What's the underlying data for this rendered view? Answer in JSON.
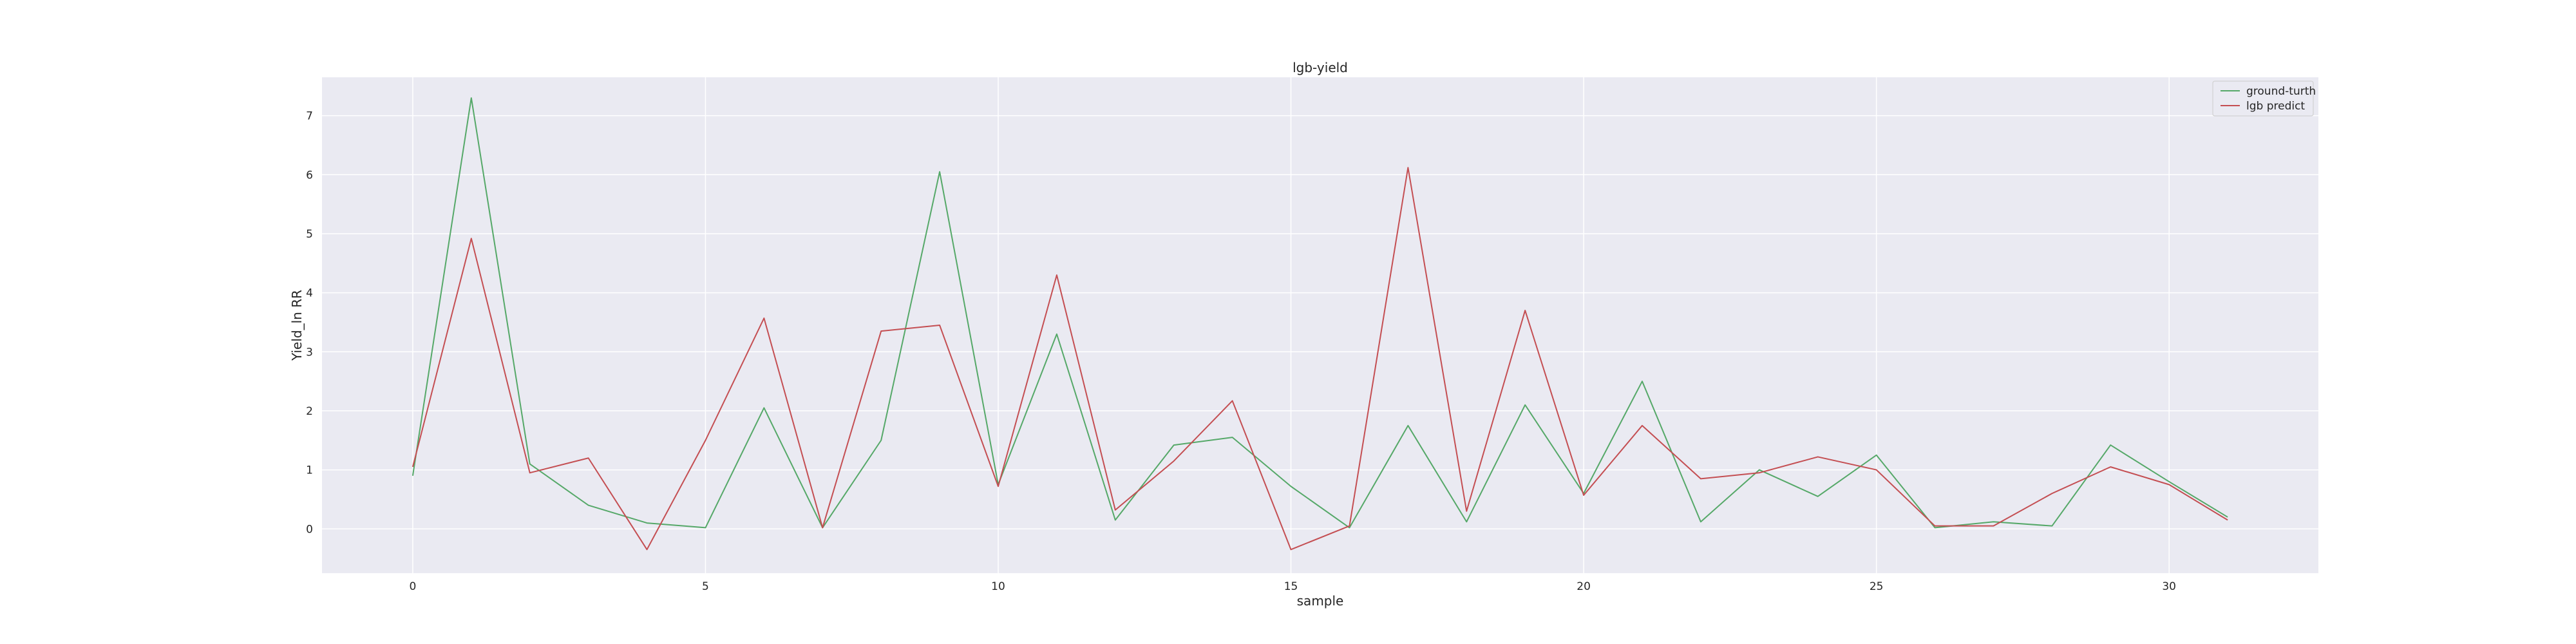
{
  "chart_data": {
    "type": "line",
    "title": "lgb-yield",
    "xlabel": "sample",
    "ylabel": "Yield_ln RR",
    "xlim": [
      -1.55,
      32.55
    ],
    "ylim": [
      -0.75,
      7.65
    ],
    "xticks": [
      0,
      5,
      10,
      15,
      20,
      25,
      30
    ],
    "yticks": [
      0,
      1,
      2,
      3,
      4,
      5,
      6,
      7
    ],
    "grid": true,
    "legend": "top-right",
    "x": [
      0,
      1,
      2,
      3,
      4,
      5,
      6,
      7,
      8,
      9,
      10,
      11,
      12,
      13,
      14,
      15,
      16,
      17,
      18,
      19,
      20,
      21,
      22,
      23,
      24,
      25,
      26,
      27,
      28,
      29,
      30,
      31
    ],
    "series": [
      {
        "name": "ground-turth",
        "color": "#55a868",
        "values": [
          0.9,
          7.3,
          1.1,
          0.4,
          0.1,
          0.02,
          2.05,
          0.02,
          1.5,
          6.05,
          0.75,
          3.3,
          0.15,
          1.42,
          1.55,
          0.72,
          0.02,
          1.75,
          0.12,
          2.1,
          0.6,
          2.5,
          0.12,
          1.0,
          0.55,
          1.25,
          0.02,
          0.12,
          0.05,
          1.42,
          0.8,
          0.2
        ]
      },
      {
        "name": "lgb predict",
        "color": "#c44e52",
        "values": [
          1.05,
          4.92,
          0.95,
          1.2,
          -0.35,
          1.5,
          3.57,
          0.02,
          3.35,
          3.45,
          0.72,
          4.3,
          0.32,
          1.15,
          2.17,
          -0.35,
          0.05,
          6.12,
          0.3,
          3.7,
          0.57,
          1.75,
          0.85,
          0.95,
          1.22,
          1.0,
          0.05,
          0.05,
          0.6,
          1.05,
          0.75,
          0.15
        ]
      }
    ],
    "colors": {
      "plot_background": "#eaeaf2",
      "grid": "#ffffff"
    }
  }
}
